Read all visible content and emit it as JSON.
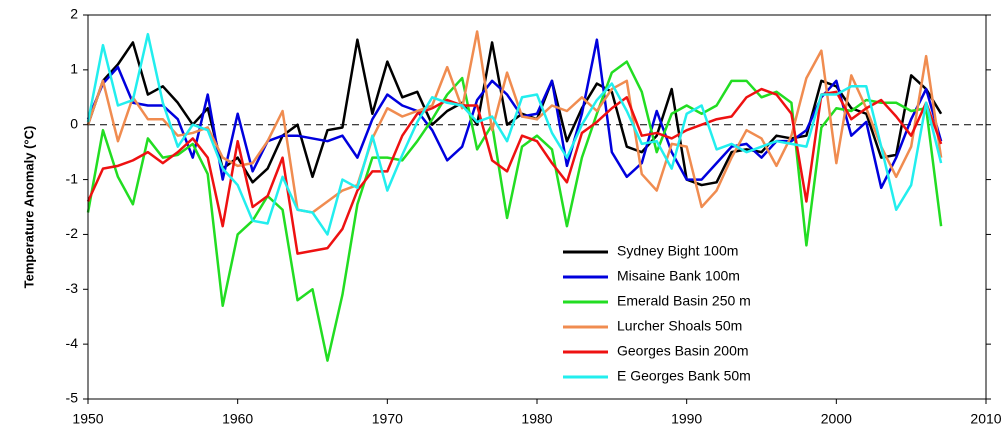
{
  "chart_data": {
    "type": "line",
    "y_label": "Temperature Anomaly (°C)",
    "x": [
      1950,
      1951,
      1952,
      1953,
      1954,
      1955,
      1956,
      1957,
      1958,
      1959,
      1960,
      1961,
      1962,
      1963,
      1964,
      1965,
      1966,
      1967,
      1968,
      1969,
      1970,
      1971,
      1972,
      1973,
      1974,
      1975,
      1976,
      1977,
      1978,
      1979,
      1980,
      1981,
      1982,
      1983,
      1984,
      1985,
      1986,
      1987,
      1988,
      1989,
      1990,
      1991,
      1992,
      1993,
      1994,
      1995,
      1996,
      1997,
      1998,
      1999,
      2000,
      2001,
      2002,
      2003,
      2004,
      2005,
      2006,
      2007
    ],
    "series": [
      {
        "name": "Sydney Bight 100m",
        "color": "#000000",
        "values": [
          0.0,
          0.8,
          1.1,
          1.5,
          0.55,
          0.7,
          0.4,
          0.0,
          0.3,
          -0.8,
          -0.6,
          -1.05,
          -0.8,
          -0.2,
          0.0,
          -0.95,
          -0.1,
          -0.05,
          1.55,
          0.2,
          1.15,
          0.5,
          0.6,
          0.0,
          0.25,
          0.4,
          0.0,
          1.5,
          0.0,
          0.2,
          0.1,
          0.8,
          -0.3,
          0.3,
          0.75,
          0.6,
          -0.4,
          -0.5,
          -0.2,
          0.65,
          -1.0,
          -1.1,
          -1.05,
          -0.5,
          -0.45,
          -0.5,
          -0.2,
          -0.25,
          -0.2,
          0.8,
          0.7,
          0.3,
          0.2,
          -0.6,
          -0.55,
          0.9,
          0.65,
          0.2
        ]
      },
      {
        "name": "Misaine Bank 100m",
        "color": "#0000dd",
        "values": [
          0.1,
          0.75,
          1.05,
          0.4,
          0.35,
          0.35,
          0.1,
          -0.6,
          0.55,
          -1.0,
          0.2,
          -0.85,
          -0.3,
          -0.2,
          -0.2,
          -0.25,
          -0.3,
          -0.2,
          -0.6,
          0.1,
          0.55,
          0.35,
          0.25,
          -0.1,
          -0.65,
          -0.4,
          0.45,
          0.8,
          0.55,
          0.15,
          0.2,
          0.8,
          -0.75,
          0.2,
          1.55,
          -0.5,
          -0.95,
          -0.7,
          0.25,
          -0.5,
          -1.0,
          -1.0,
          -0.7,
          -0.4,
          -0.35,
          -0.6,
          -0.3,
          -0.3,
          -0.1,
          0.5,
          0.8,
          -0.2,
          0.05,
          -1.15,
          -0.6,
          0.1,
          0.65,
          -0.3
        ]
      },
      {
        "name": "Emerald Basin 250 m",
        "color": "#22dd22",
        "values": [
          -1.6,
          -0.1,
          -0.95,
          -1.45,
          -0.25,
          -0.6,
          -0.55,
          -0.35,
          -0.9,
          -3.3,
          -2.0,
          -1.75,
          -1.3,
          -1.55,
          -3.2,
          -3.0,
          -4.3,
          -3.1,
          -1.45,
          -0.6,
          -0.6,
          -0.65,
          -0.3,
          0.1,
          0.55,
          0.85,
          -0.45,
          0.0,
          -1.7,
          -0.4,
          -0.2,
          -0.45,
          -1.85,
          -0.6,
          0.2,
          0.95,
          1.15,
          0.6,
          -0.5,
          0.2,
          0.35,
          0.2,
          0.35,
          0.8,
          0.8,
          0.5,
          0.6,
          0.4,
          -2.2,
          -0.05,
          0.3,
          0.25,
          0.45,
          0.4,
          0.4,
          0.25,
          0.3,
          -1.85
        ]
      },
      {
        "name": "Lurcher Shoals 50m",
        "color": "#f08c50",
        "values": [
          0.0,
          0.8,
          -0.3,
          0.5,
          0.1,
          0.1,
          -0.2,
          -0.15,
          -0.05,
          -0.6,
          -0.75,
          -0.7,
          -0.3,
          0.25,
          -1.55,
          -1.6,
          -1.4,
          -1.2,
          -1.1,
          -0.25,
          0.3,
          0.15,
          0.25,
          0.35,
          1.05,
          0.3,
          1.7,
          -0.1,
          0.95,
          0.15,
          0.1,
          0.35,
          0.25,
          0.5,
          0.25,
          0.65,
          0.8,
          -0.9,
          -1.2,
          -0.35,
          -0.4,
          -1.5,
          -1.2,
          -0.6,
          -0.1,
          -0.25,
          -0.75,
          -0.2,
          0.85,
          1.35,
          -0.7,
          0.9,
          0.3,
          -0.4,
          -0.95,
          -0.4,
          1.25,
          -0.6
        ]
      },
      {
        "name": "Georges Basin 200m",
        "color": "#ee1111",
        "values": [
          -1.4,
          -0.8,
          -0.75,
          -0.65,
          -0.5,
          -0.7,
          -0.5,
          -0.25,
          -0.6,
          -1.85,
          -0.3,
          -1.5,
          -1.3,
          -0.6,
          -2.35,
          -2.3,
          -2.25,
          -1.9,
          -1.2,
          -0.85,
          -0.85,
          -0.2,
          0.2,
          0.3,
          0.45,
          0.35,
          0.35,
          -0.65,
          -0.85,
          -0.2,
          -0.3,
          -0.7,
          -1.05,
          -0.15,
          0.05,
          0.3,
          0.5,
          -0.2,
          -0.15,
          -0.25,
          -0.1,
          0.0,
          0.1,
          0.15,
          0.5,
          0.65,
          0.55,
          0.2,
          -1.4,
          0.55,
          0.6,
          0.1,
          0.3,
          0.45,
          0.15,
          -0.2,
          0.4,
          -0.35
        ]
      },
      {
        "name": "E Georges Bank 50m",
        "color": "#22eeee",
        "values": [
          0.05,
          1.45,
          0.35,
          0.45,
          1.65,
          0.4,
          -0.4,
          0.0,
          -0.1,
          -0.8,
          -1.1,
          -1.75,
          -1.8,
          -0.95,
          -1.55,
          -1.6,
          -2.0,
          -1.0,
          -1.15,
          -0.2,
          -1.2,
          -0.55,
          0.05,
          0.5,
          0.4,
          0.35,
          0.05,
          0.15,
          -0.3,
          0.5,
          0.55,
          -0.15,
          -0.6,
          0.0,
          0.45,
          0.75,
          0.25,
          -0.35,
          -0.3,
          -0.8,
          0.2,
          0.35,
          -0.45,
          -0.35,
          -0.5,
          -0.4,
          -0.3,
          -0.35,
          -0.4,
          0.55,
          0.55,
          0.7,
          0.7,
          -0.4,
          -1.55,
          -1.1,
          0.4,
          -0.7
        ]
      }
    ],
    "xlim": [
      1950,
      2010
    ],
    "xticks": [
      1950,
      1960,
      1970,
      1980,
      1990,
      2000,
      2010
    ],
    "ylim": [
      -5,
      2
    ],
    "yticks": [
      -5,
      -4,
      -3,
      -2,
      -1,
      0,
      1,
      2
    ]
  }
}
